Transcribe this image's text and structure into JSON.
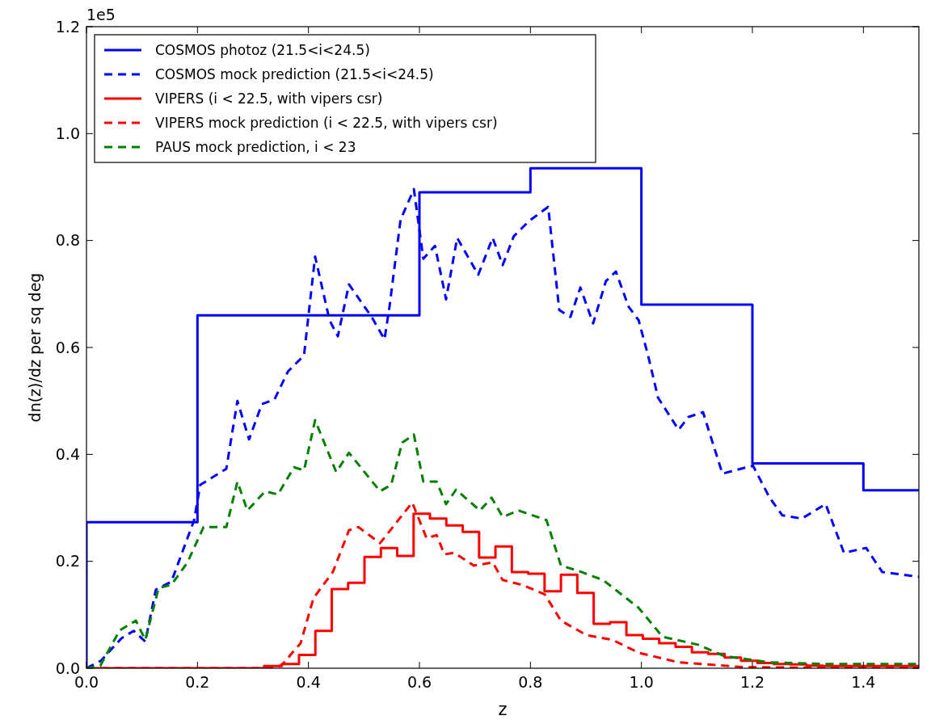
{
  "chart_data": {
    "type": "line",
    "xlabel": "z",
    "ylabel": "dn(z)/dz per sq deg",
    "annotations": [
      "1e5"
    ],
    "xlim": [
      0,
      1.5
    ],
    "xticks": [
      {
        "value": 0,
        "label": "0.0"
      },
      0.2,
      0.4,
      0.6,
      0.8,
      {
        "value": 1,
        "label": "1.0"
      },
      1.2,
      1.4
    ],
    "ylim": [
      0,
      1.2
    ],
    "yticks": [
      {
        "value": 0,
        "label": "0.0"
      },
      0.2,
      0.4,
      0.6,
      0.8,
      {
        "value": 1,
        "label": "1.0"
      },
      1.2
    ],
    "grid": false,
    "legend": "top left",
    "series": [
      {
        "name": "COSMOS photoz (21.5<i<24.5)",
        "type": "step",
        "color": "#0000ff",
        "line_style": "solid",
        "x": [
          0,
          0,
          0.2,
          0.6,
          0.8,
          1.0,
          1.2,
          1.4,
          1.5
        ],
        "values": [
          0,
          0.273,
          0.66,
          0.89,
          0.935,
          0.68,
          0.383,
          0.333,
          0.333
        ]
      },
      {
        "name": "COSMOS mock prediction (21.5<i<24.5)",
        "type": "line",
        "color": "#0000ff",
        "line_style": "dashed",
        "x": [
          0,
          0.026,
          0.063,
          0.085,
          0.106,
          0.125,
          0.153,
          0.194,
          0.205,
          0.252,
          0.272,
          0.293,
          0.316,
          0.339,
          0.363,
          0.392,
          0.412,
          0.438,
          0.453,
          0.473,
          0.514,
          0.537,
          0.546,
          0.566,
          0.59,
          0.607,
          0.628,
          0.648,
          0.668,
          0.706,
          0.732,
          0.75,
          0.77,
          0.797,
          0.832,
          0.852,
          0.872,
          0.89,
          0.913,
          0.936,
          0.954,
          0.977,
          0.995,
          1.012,
          1.03,
          1.067,
          1.085,
          1.111,
          1.146,
          1.201,
          1.231,
          1.254,
          1.289,
          1.332,
          1.365,
          1.405,
          1.434,
          1.5
        ],
        "values": [
          0,
          0.014,
          0.056,
          0.07,
          0.05,
          0.147,
          0.162,
          0.277,
          0.343,
          0.373,
          0.5,
          0.428,
          0.494,
          0.503,
          0.555,
          0.585,
          0.77,
          0.651,
          0.621,
          0.718,
          0.657,
          0.615,
          0.676,
          0.839,
          0.896,
          0.766,
          0.79,
          0.69,
          0.805,
          0.736,
          0.805,
          0.754,
          0.808,
          0.836,
          0.863,
          0.67,
          0.657,
          0.712,
          0.645,
          0.724,
          0.742,
          0.676,
          0.651,
          0.585,
          0.506,
          0.446,
          0.47,
          0.479,
          0.364,
          0.379,
          0.319,
          0.286,
          0.28,
          0.307,
          0.216,
          0.225,
          0.18,
          0.171
        ]
      },
      {
        "name": "VIPERS (i < 22.5, with vipers csr)",
        "type": "step",
        "color": "#ff0000",
        "line_style": "solid",
        "x": [
          0,
          0.32,
          0.352,
          0.383,
          0.4125,
          0.442,
          0.4715,
          0.501,
          0.5305,
          0.56,
          0.5895,
          0.619,
          0.6485,
          0.678,
          0.7075,
          0.737,
          0.7665,
          0.796,
          0.8255,
          0.855,
          0.8845,
          0.914,
          0.9435,
          0.973,
          1.0025,
          1.032,
          1.0615,
          1.091,
          1.1205,
          1.15,
          1.1795,
          1.209,
          1.2385,
          1.268,
          1.2975,
          1.327,
          1.3565,
          1.386,
          1.4155,
          1.445,
          1.4745,
          1.5
        ],
        "values": [
          0,
          0.004,
          0.008,
          0.025,
          0.07,
          0.148,
          0.16,
          0.208,
          0.225,
          0.21,
          0.289,
          0.28,
          0.267,
          0.255,
          0.207,
          0.228,
          0.18,
          0.177,
          0.144,
          0.175,
          0.141,
          0.083,
          0.086,
          0.062,
          0.055,
          0.047,
          0.04,
          0.03,
          0.027,
          0.02,
          0.014,
          0.01,
          0.008,
          0.007,
          0.005,
          0.004,
          0.004,
          0.004,
          0.004,
          0.004,
          0.004,
          0.004
        ]
      },
      {
        "name": "VIPERS mock prediction (i < 22.5, with vipers csr)",
        "type": "line",
        "color": "#ff0000",
        "line_style": "dashed",
        "x": [
          0,
          0.33,
          0.351,
          0.386,
          0.409,
          0.444,
          0.473,
          0.49,
          0.529,
          0.552,
          0.587,
          0.613,
          0.631,
          0.645,
          0.663,
          0.698,
          0.732,
          0.75,
          0.785,
          0.826,
          0.855,
          0.901,
          0.948,
          0.995,
          1.067,
          1.184,
          1.3,
          1.5
        ],
        "values": [
          0,
          0,
          0.005,
          0.047,
          0.131,
          0.18,
          0.258,
          0.264,
          0.234,
          0.264,
          0.31,
          0.243,
          0.249,
          0.213,
          0.216,
          0.192,
          0.198,
          0.165,
          0.156,
          0.138,
          0.089,
          0.062,
          0.053,
          0.029,
          0.011,
          0.002,
          0.001,
          0.001
        ]
      },
      {
        "name": "PAUS mock prediction, i < 23",
        "type": "line",
        "color": "#008000",
        "line_style": "dashed",
        "x": [
          0,
          0.025,
          0.06,
          0.089,
          0.106,
          0.13,
          0.153,
          0.182,
          0.211,
          0.252,
          0.272,
          0.29,
          0.322,
          0.345,
          0.374,
          0.392,
          0.412,
          0.45,
          0.473,
          0.529,
          0.549,
          0.569,
          0.59,
          0.607,
          0.631,
          0.648,
          0.666,
          0.709,
          0.73,
          0.75,
          0.779,
          0.829,
          0.855,
          0.884,
          0.931,
          0.995,
          1.038,
          1.102,
          1.149,
          1.231,
          1.335,
          1.5
        ],
        "values": [
          0,
          0.005,
          0.071,
          0.089,
          0.053,
          0.15,
          0.156,
          0.198,
          0.264,
          0.264,
          0.349,
          0.295,
          0.331,
          0.325,
          0.376,
          0.37,
          0.464,
          0.367,
          0.403,
          0.331,
          0.343,
          0.422,
          0.437,
          0.349,
          0.349,
          0.307,
          0.334,
          0.295,
          0.319,
          0.283,
          0.295,
          0.277,
          0.192,
          0.183,
          0.165,
          0.113,
          0.059,
          0.044,
          0.023,
          0.011,
          0.008,
          0.008
        ]
      }
    ]
  }
}
